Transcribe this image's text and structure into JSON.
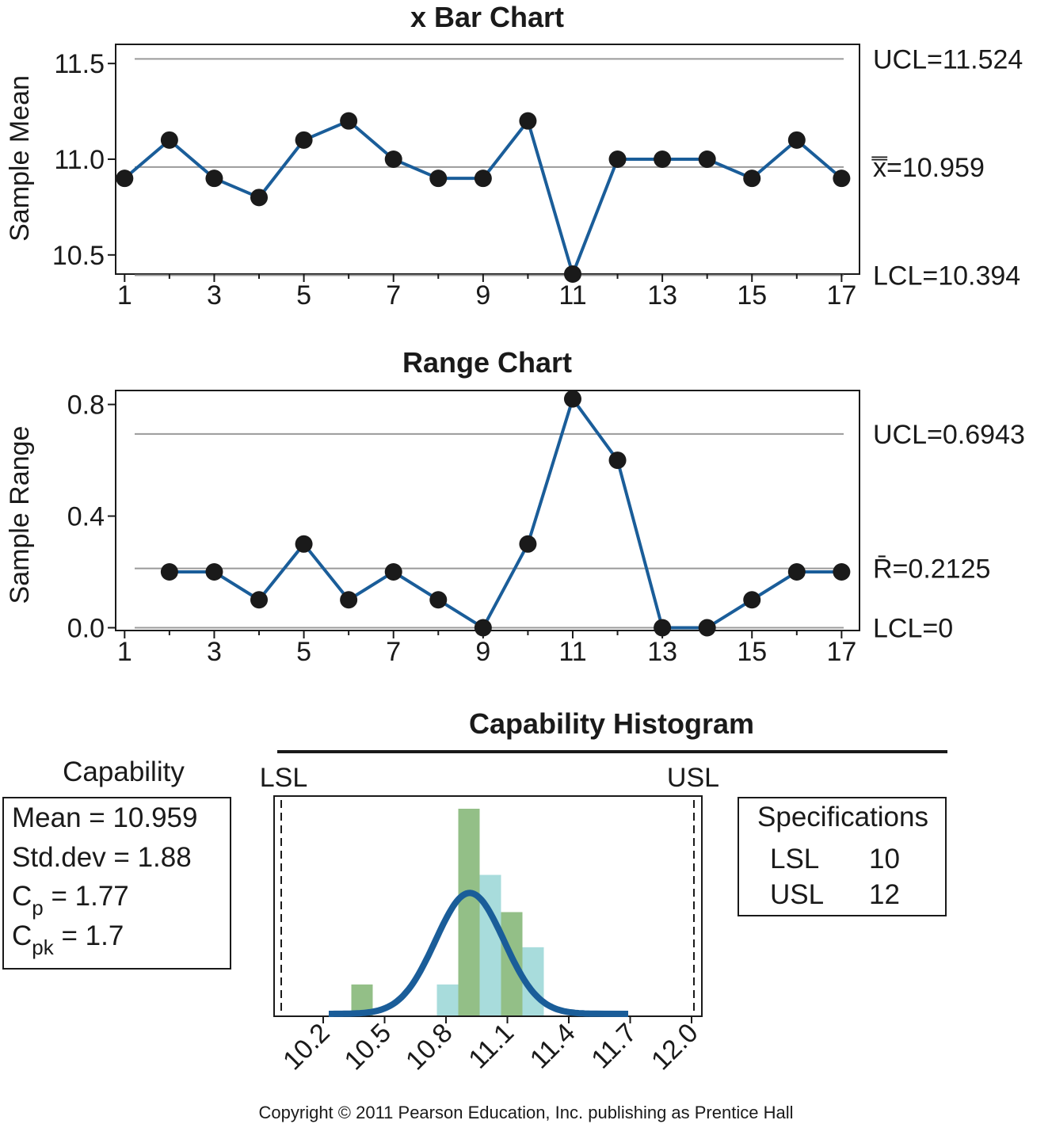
{
  "copyright": "Copyright © 2011 Pearson Education, Inc. publishing as Prentice Hall",
  "chart_data": [
    {
      "type": "line",
      "title": "x Bar Chart",
      "ylabel": "Sample Mean",
      "ylim": [
        10.4,
        11.6
      ],
      "xlim": [
        0.8,
        17.4
      ],
      "xticks": [
        "1",
        "3",
        "5",
        "7",
        "9",
        "11",
        "13",
        "15",
        "17"
      ],
      "yticks": [
        "10.5",
        "11.0",
        "11.5"
      ],
      "x": [
        1,
        2,
        3,
        4,
        5,
        6,
        7,
        8,
        9,
        10,
        11,
        12,
        13,
        14,
        15,
        16,
        17
      ],
      "values": [
        10.9,
        11.1,
        10.9,
        10.8,
        11.1,
        11.2,
        11.0,
        10.9,
        10.9,
        11.2,
        10.4,
        11.0,
        11.0,
        11.0,
        10.9,
        11.1,
        10.9
      ],
      "reference_lines": [
        {
          "label": "UCL=11.524",
          "value": 11.524
        },
        {
          "label": "x̿=10.959",
          "value": 10.959
        },
        {
          "label": "LCL=10.394",
          "value": 10.394
        }
      ],
      "colors": {
        "series": "#1a5d99",
        "points": "#1a1a1a",
        "reference": "#9a9a9a"
      }
    },
    {
      "type": "line",
      "title": "Range Chart",
      "ylabel": "Sample Range",
      "ylim": [
        -0.01,
        0.85
      ],
      "xlim": [
        0.8,
        17.4
      ],
      "xticks": [
        "1",
        "3",
        "5",
        "7",
        "9",
        "11",
        "13",
        "15",
        "17"
      ],
      "yticks": [
        "0.0",
        "0.4",
        "0.8"
      ],
      "x": [
        2,
        3,
        4,
        5,
        6,
        7,
        8,
        9,
        10,
        11,
        12,
        13,
        14,
        15,
        16,
        17
      ],
      "values": [
        0.2,
        0.2,
        0.1,
        0.3,
        0.1,
        0.2,
        0.1,
        0.0,
        0.3,
        0.82,
        0.6,
        0.0,
        0.0,
        0.1,
        0.2,
        0.2
      ],
      "reference_lines": [
        {
          "label": "UCL=0.6943",
          "value": 0.6943
        },
        {
          "label": "R̄=0.2125",
          "value": 0.2125
        },
        {
          "label": "LCL=0",
          "value": 0
        }
      ],
      "colors": {
        "series": "#1a5d99",
        "points": "#1a1a1a",
        "reference": "#9a9a9a"
      }
    },
    {
      "type": "bar",
      "title": "Capability Histogram",
      "xticks": [
        "10.2",
        "10.5",
        "10.8",
        "11.1",
        "11.4",
        "11.7",
        "12.0"
      ],
      "spec_labels": {
        "lsl": "LSL",
        "usl": "USL"
      },
      "bars": [
        {
          "x": 10.4,
          "value": 0.15,
          "color": "#93bf87"
        },
        {
          "x": 10.8,
          "value": 0.15,
          "color": "#a8dcdc"
        },
        {
          "x": 10.9,
          "value": 1.0,
          "color": "#93bf87"
        },
        {
          "x": 11.0,
          "value": 0.68,
          "color": "#a8dcdc"
        },
        {
          "x": 11.1,
          "value": 0.5,
          "color": "#93bf87"
        },
        {
          "x": 11.2,
          "value": 0.33,
          "color": "#a8dcdc"
        }
      ],
      "normal_curve": {
        "mean": 10.959,
        "color": "#1a5d99"
      }
    }
  ],
  "capability_panel": {
    "title": "Capability",
    "mean_line": "Mean = 10.959",
    "std_line": "Std.dev = 1.88",
    "cp": {
      "main": "C",
      "sub": "p",
      "rest": " = 1.77"
    },
    "cpk": {
      "main": "C",
      "sub": "pk",
      "rest": " = 1.7"
    }
  },
  "specifications_panel": {
    "title": "Specifications",
    "rows": [
      {
        "label": "LSL",
        "value": "10"
      },
      {
        "label": "USL",
        "value": "12"
      }
    ]
  }
}
